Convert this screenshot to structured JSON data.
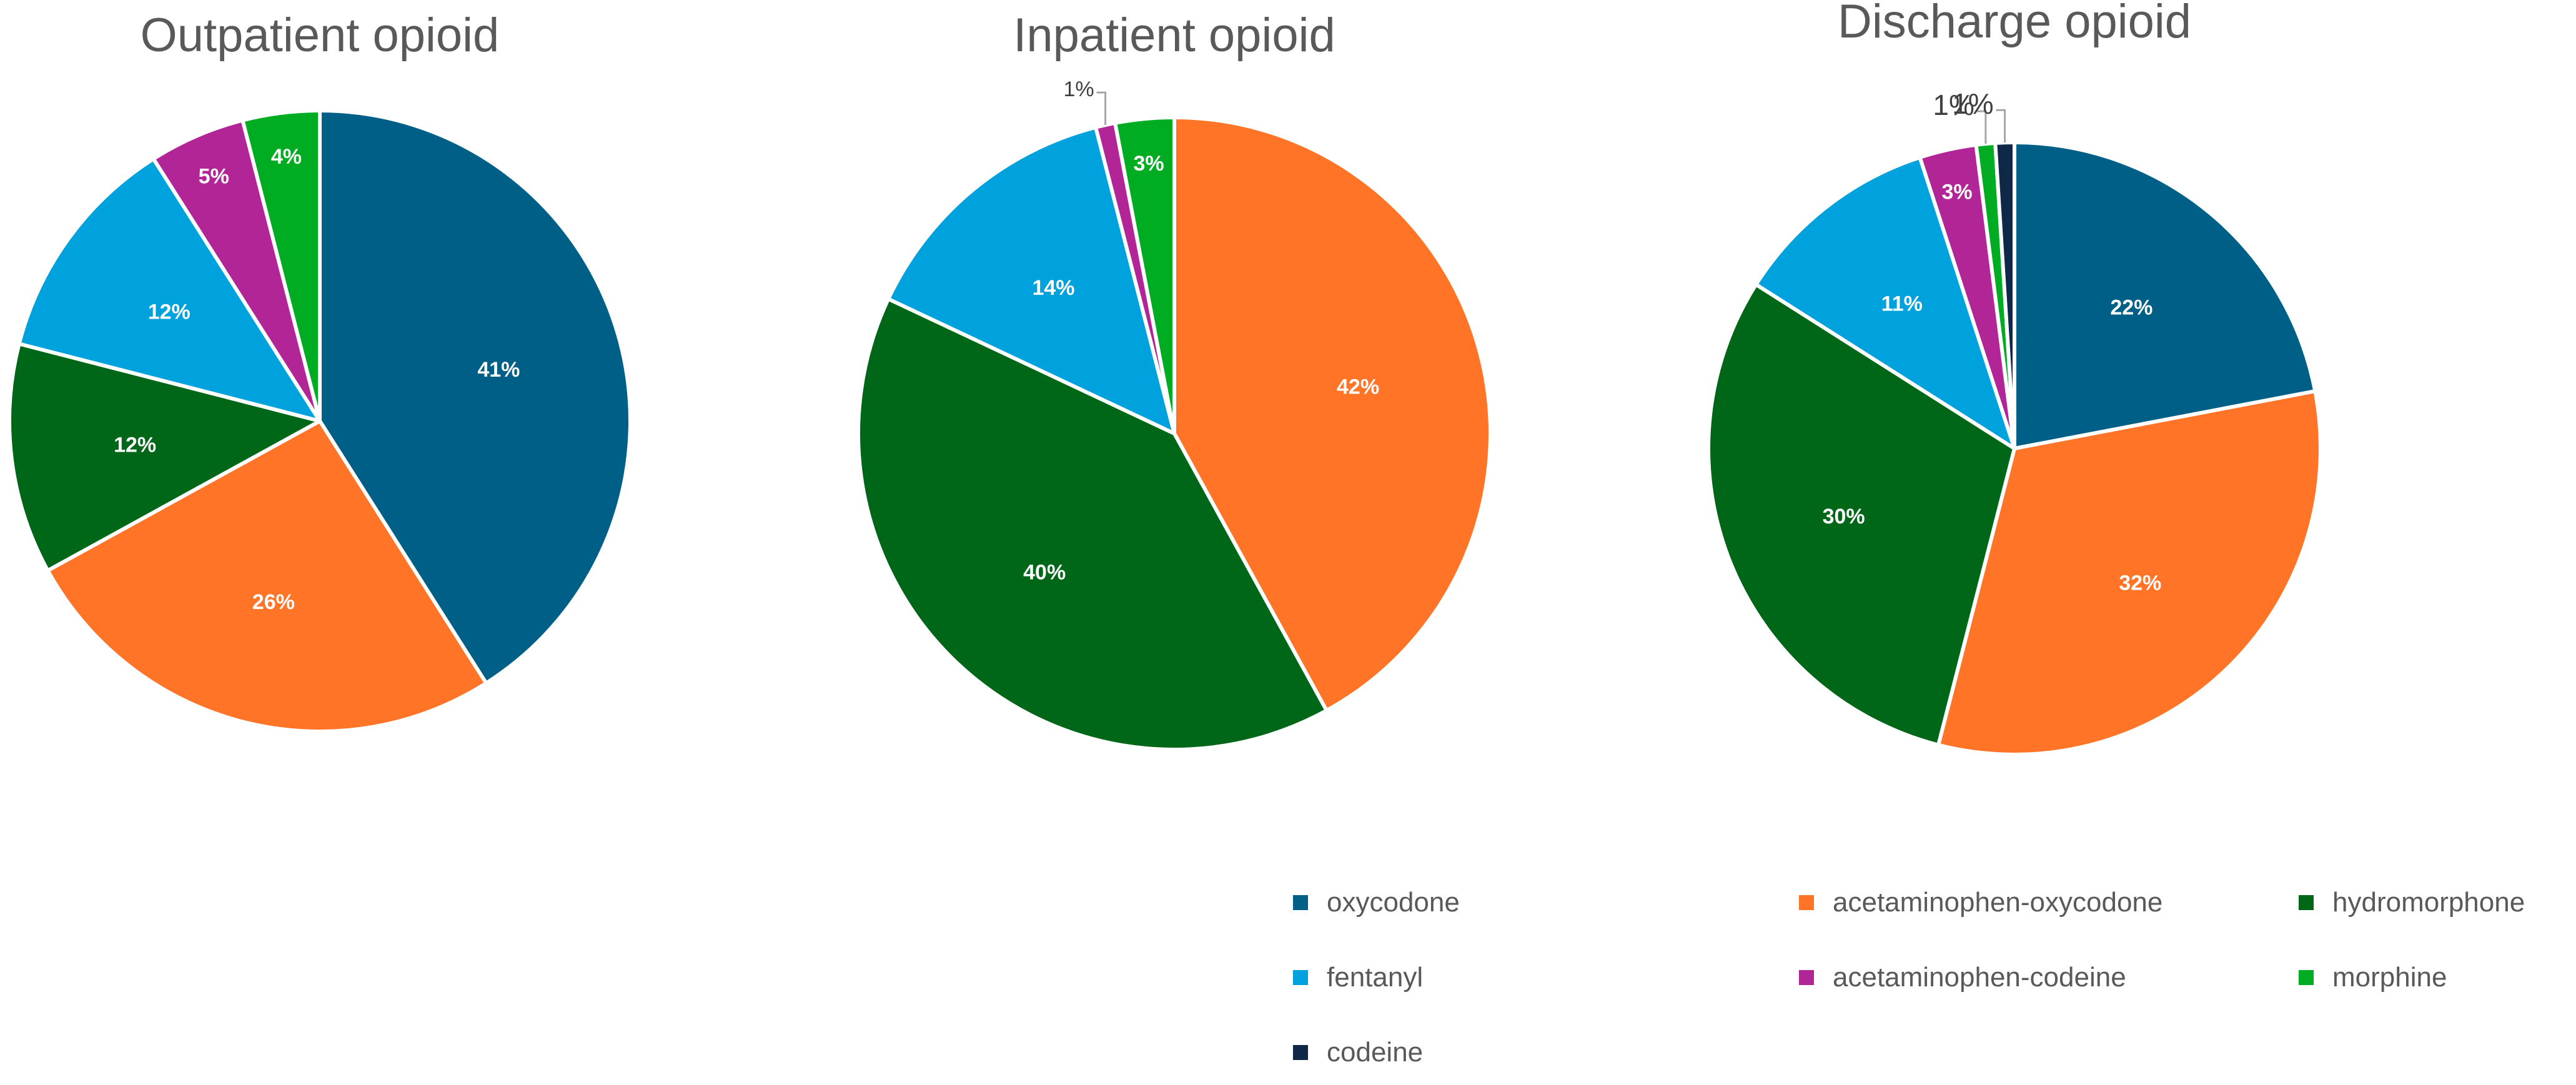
{
  "legend_entries": [
    {
      "label": "oxycodone",
      "color": "#005F86"
    },
    {
      "label": "acetaminophen-oxycodone",
      "color": "#FF7427"
    },
    {
      "label": "hydromorphone",
      "color": "#006718"
    },
    {
      "label": "fentanyl",
      "color": "#00A2DE"
    },
    {
      "label": "acetaminophen-codeine",
      "color": "#B22596"
    },
    {
      "label": "morphine",
      "color": "#00AC22"
    },
    {
      "label": "codeine",
      "color": "#0F2847"
    }
  ],
  "chart_data": [
    {
      "type": "pie",
      "title": "Outpatient opioid",
      "slices": [
        {
          "category": "oxycodone",
          "value": 41,
          "label": "41%",
          "color": "#005F86"
        },
        {
          "category": "acetaminophen-oxycodone",
          "value": 26,
          "label": "26%",
          "color": "#FF7427"
        },
        {
          "category": "hydromorphone",
          "value": 12,
          "label": "12%",
          "color": "#006718"
        },
        {
          "category": "fentanyl",
          "value": 12,
          "label": "12%",
          "color": "#00A2DE"
        },
        {
          "category": "acetaminophen-codeine",
          "value": 5,
          "label": "5%",
          "color": "#B22596"
        },
        {
          "category": "morphine",
          "value": 4,
          "label": "4%",
          "color": "#00AC22"
        }
      ]
    },
    {
      "type": "pie",
      "title": "Inpatient opioid",
      "slices": [
        {
          "category": "acetaminophen-oxycodone",
          "value": 42,
          "label": "42%",
          "color": "#FF7427"
        },
        {
          "category": "hydromorphone",
          "value": 40,
          "label": "40%",
          "color": "#006718"
        },
        {
          "category": "fentanyl",
          "value": 14,
          "label": "14%",
          "color": "#00A2DE"
        },
        {
          "category": "acetaminophen-codeine",
          "value": 1,
          "label": "1%",
          "color": "#B22596"
        },
        {
          "category": "morphine",
          "value": 3,
          "label": "3%",
          "color": "#00AC22"
        }
      ]
    },
    {
      "type": "pie",
      "title": "Discharge opioid",
      "slices": [
        {
          "category": "oxycodone",
          "value": 22,
          "label": "22%",
          "color": "#005F86"
        },
        {
          "category": "acetaminophen-oxycodone",
          "value": 32,
          "label": "32%",
          "color": "#FF7427"
        },
        {
          "category": "hydromorphone",
          "value": 30,
          "label": "30%",
          "color": "#006718"
        },
        {
          "category": "fentanyl",
          "value": 11,
          "label": "11%",
          "color": "#00A2DE"
        },
        {
          "category": "acetaminophen-codeine",
          "value": 3,
          "label": "3%",
          "color": "#B22596"
        },
        {
          "category": "morphine",
          "value": 1,
          "label": "1%",
          "color": "#00AC22"
        },
        {
          "category": "codeine",
          "value": 1,
          "label": "1%",
          "color": "#0F2847"
        }
      ]
    }
  ]
}
